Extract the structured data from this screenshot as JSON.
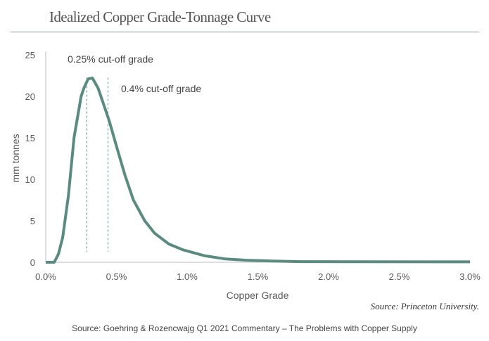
{
  "title": "Idealized Copper Grade-Tonnage Curve",
  "source_note": "Source: Princeton University.",
  "footer": "Source: Goehring & Rozencwajg Q1 2021 Commentary – The Problems with Copper Supply",
  "colors": {
    "line": "#5b8b80",
    "axis": "#bfbfbf",
    "text": "#595959"
  },
  "chart_data": {
    "type": "line",
    "title": "Idealized Copper Grade-Tonnage Curve",
    "xlabel": "Copper Grade",
    "ylabel": "mm tonnes",
    "xlim": [
      0,
      3.0
    ],
    "ylim": [
      0,
      25
    ],
    "x_ticks": [
      0,
      0.5,
      1.0,
      1.5,
      2.0,
      2.5,
      3.0
    ],
    "x_tick_labels": [
      "0.0%",
      "0.5%",
      "1.0%",
      "1.5%",
      "2.0%",
      "2.5%",
      "3.0%"
    ],
    "y_ticks": [
      0,
      5,
      10,
      15,
      20,
      25
    ],
    "y_tick_labels": [
      "0",
      "5",
      "10",
      "15",
      "20",
      "25"
    ],
    "grid": false,
    "series": [
      {
        "name": "Tonnage",
        "x": [
          0,
          0.06,
          0.09,
          0.12,
          0.16,
          0.2,
          0.25,
          0.27,
          0.3,
          0.33,
          0.37,
          0.41,
          0.45,
          0.5,
          0.56,
          0.62,
          0.7,
          0.77,
          0.87,
          0.97,
          1.12,
          1.27,
          1.42,
          1.6,
          1.8,
          3.0
        ],
        "y": [
          0,
          0,
          1,
          3,
          8,
          15,
          20,
          21,
          22.1,
          22.2,
          21,
          19,
          17,
          14,
          10.5,
          7.5,
          5,
          3.5,
          2.2,
          1.5,
          0.8,
          0.4,
          0.25,
          0.15,
          0.08,
          0.05
        ]
      }
    ],
    "annotations": [
      {
        "label": "0.25% cut-off grade",
        "x": 0.29,
        "y_top": 22.5
      },
      {
        "label": "0.4% cut-off grade",
        "x": 0.44,
        "y_top": 22.5
      }
    ]
  }
}
